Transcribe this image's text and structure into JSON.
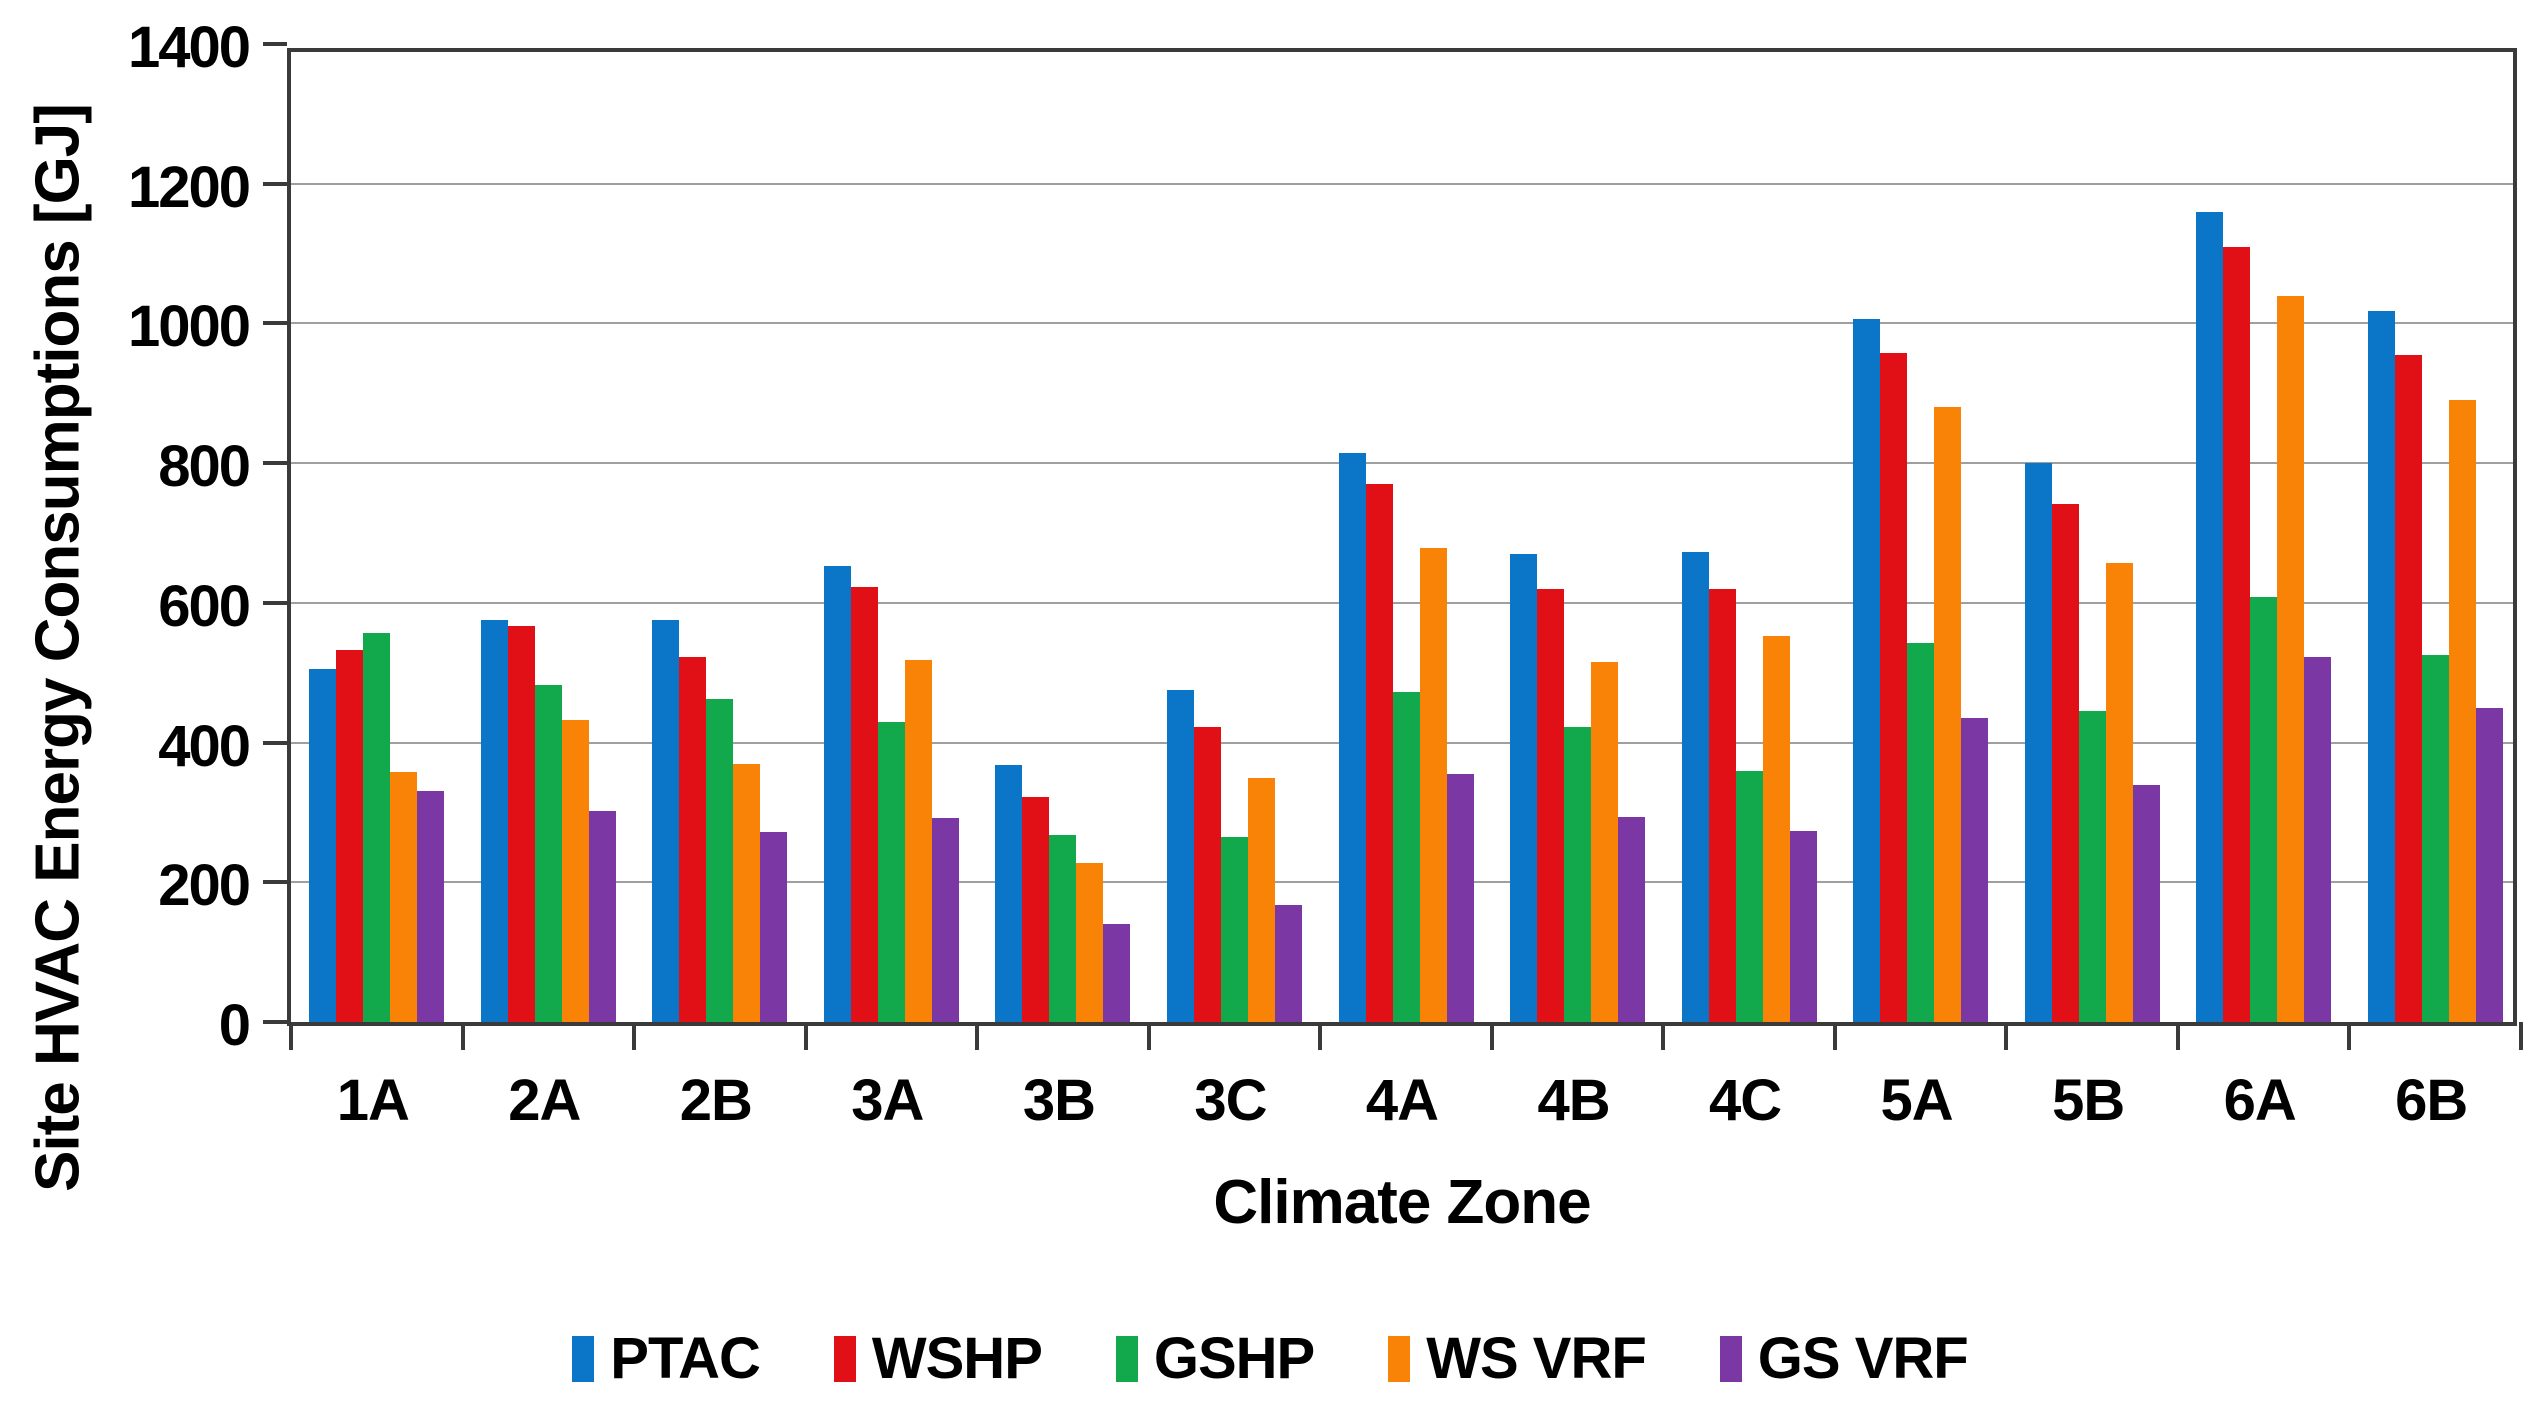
{
  "figure": {
    "y_axis_title": "Site HVAC Energy Consumptions [GJ]",
    "x_axis_title": "Climate Zone",
    "y_tick_labels": [
      "0",
      "200",
      "400",
      "600",
      "800",
      "1000",
      "1200",
      "1400"
    ],
    "legend_labels": [
      "PTAC",
      "WSHP",
      "GSHP",
      "WS VRF",
      "GS VRF"
    ]
  },
  "chart_data": {
    "type": "bar",
    "title": "",
    "xlabel": "Climate Zone",
    "ylabel": "Site HVAC Energy Consumptions [GJ]",
    "ylim": [
      0,
      1400
    ],
    "ytick_step": 200,
    "grid": true,
    "legend_position": "bottom",
    "categories": [
      "1A",
      "2A",
      "2B",
      "3A",
      "3B",
      "3C",
      "4A",
      "4B",
      "4C",
      "5A",
      "5B",
      "6A",
      "6B"
    ],
    "series": [
      {
        "name": "PTAC",
        "color": "#0B76C7",
        "values": [
          505,
          575,
          575,
          653,
          368,
          475,
          815,
          670,
          673,
          1007,
          800,
          1160,
          1018
        ]
      },
      {
        "name": "WSHP",
        "color": "#E01016",
        "values": [
          533,
          567,
          523,
          623,
          322,
          423,
          770,
          620,
          620,
          958,
          742,
          1110,
          955
        ]
      },
      {
        "name": "GSHP",
        "color": "#11A94B",
        "values": [
          557,
          483,
          462,
          430,
          267,
          265,
          473,
          423,
          360,
          542,
          445,
          608,
          525
        ]
      },
      {
        "name": "WS VRF",
        "color": "#F98307",
        "values": [
          358,
          432,
          370,
          518,
          228,
          350,
          678,
          515,
          553,
          880,
          657,
          1040,
          890
        ]
      },
      {
        "name": "GS VRF",
        "color": "#7B38A4",
        "values": [
          330,
          302,
          272,
          292,
          140,
          168,
          355,
          293,
          273,
          435,
          340,
          522,
          450
        ]
      }
    ]
  }
}
